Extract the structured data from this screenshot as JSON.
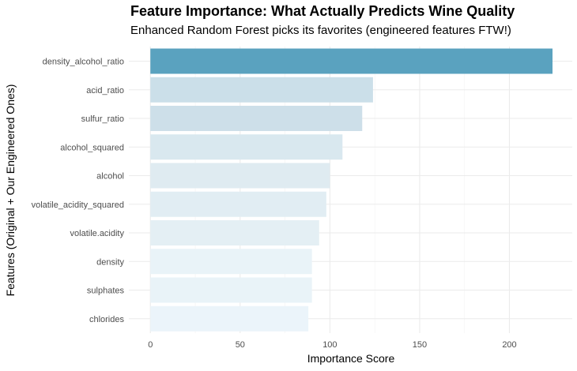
{
  "chart_data": {
    "type": "bar",
    "orientation": "horizontal",
    "title": "Feature Importance: What Actually Predicts Wine Quality",
    "subtitle": "Enhanced Random Forest picks its favorites (engineered features FTW!)",
    "xlabel": "Importance Score",
    "ylabel": "Features (Original + Our Engineered Ones)",
    "categories": [
      "density_alcohol_ratio",
      "acid_ratio",
      "sulfur_ratio",
      "alcohol_squared",
      "alcohol",
      "volatile_acidity_squared",
      "volatile.acidity",
      "density",
      "sulphates",
      "chlorides"
    ],
    "values": [
      224,
      124,
      118,
      107,
      100,
      98,
      94,
      90,
      90,
      88
    ],
    "bar_colors": [
      "#5aa2bf",
      "#cbdfe9",
      "#cddfe9",
      "#d9e8ef",
      "#dfebf1",
      "#e1edf3",
      "#e4eff4",
      "#e9f3f8",
      "#e9f3f8",
      "#ebf4fa"
    ],
    "xlim": [
      -12,
      235
    ],
    "xticks": [
      0,
      50,
      100,
      150,
      200
    ],
    "xtick_labels": [
      "0",
      "50",
      "100",
      "150",
      "200"
    ],
    "grid": true,
    "legend": "none"
  }
}
